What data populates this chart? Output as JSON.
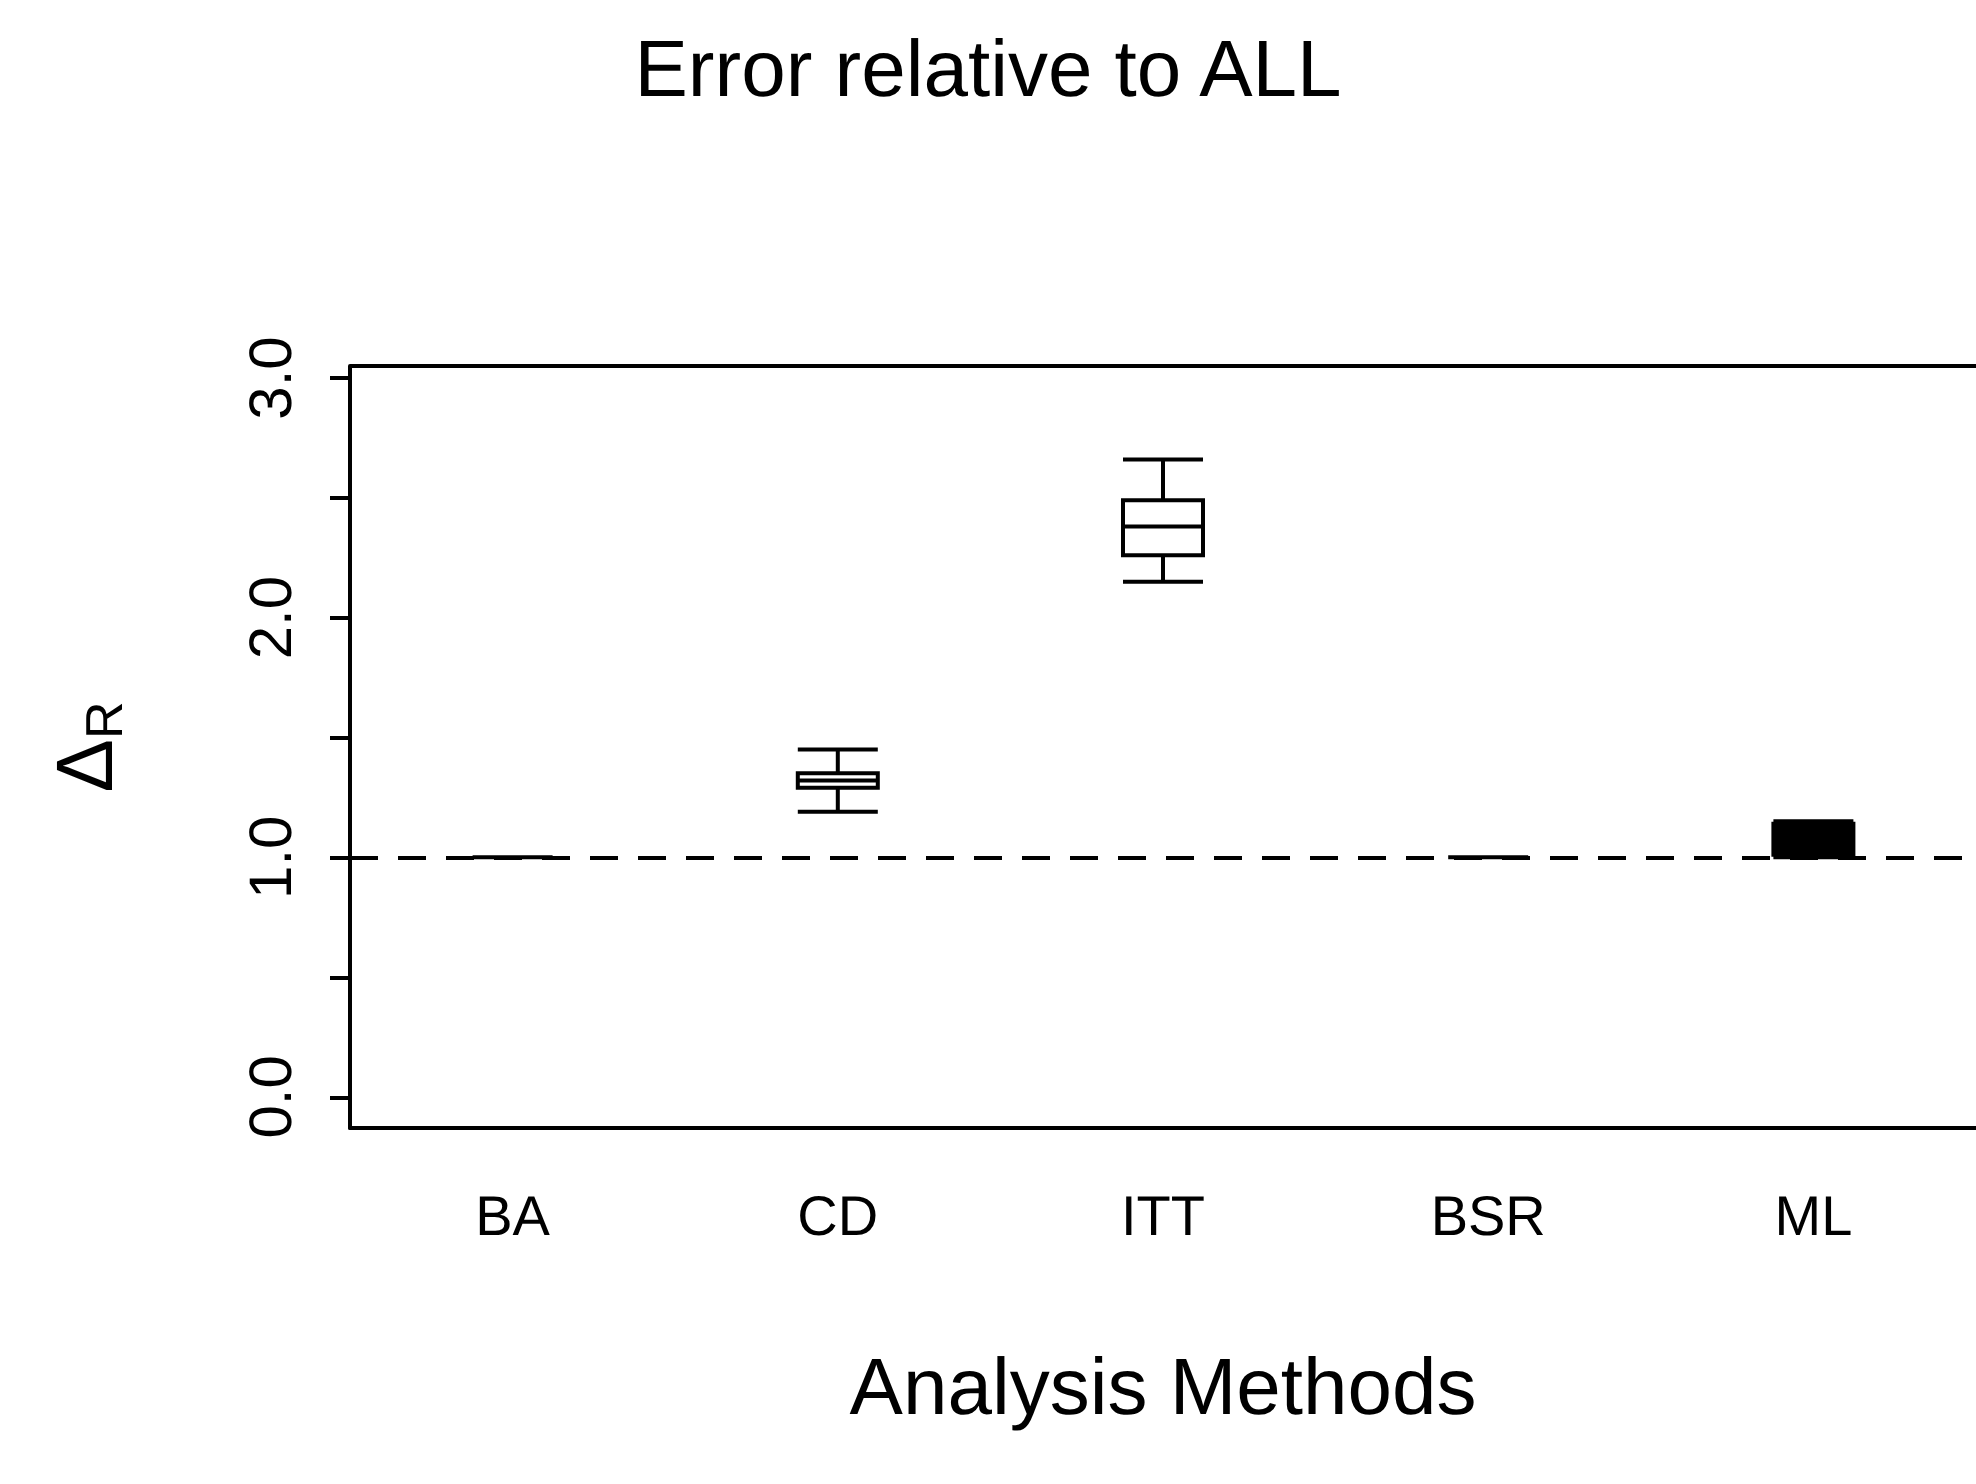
{
  "chart_data": {
    "type": "box",
    "title": "Error relative to ALL",
    "xlabel": "Analysis Methods",
    "ylabel": "Δ$_{R}$",
    "categories": [
      "BA",
      "CD",
      "ITT",
      "BSR",
      "ML"
    ],
    "boxes": [
      {
        "low": 1.0,
        "q1": 1.0,
        "median": 1.0,
        "q3": 1.0,
        "high": 1.0
      },
      {
        "low": 1.19,
        "q1": 1.29,
        "median": 1.32,
        "q3": 1.35,
        "high": 1.45
      },
      {
        "low": 2.15,
        "q1": 2.26,
        "median": 2.38,
        "q3": 2.49,
        "high": 2.66
      },
      {
        "low": 1.0,
        "q1": 1.0,
        "median": 1.0,
        "q3": 1.0,
        "high": 1.0
      },
      {
        "low": 1.0,
        "q1": 1.01,
        "median": 1.07,
        "q3": 1.14,
        "high": 1.15
      }
    ],
    "color": "#000000",
    "colors": [
      null,
      "#ffffff",
      "#ffffff",
      null,
      "#000000"
    ],
    "ylim": [
      -0.13,
      3.05
    ],
    "yticks": [
      {
        "value": 0,
        "label": "0.0"
      },
      {
        "value": 0.5,
        "label": null
      },
      {
        "value": 1,
        "label": "1.0"
      },
      {
        "value": 1.5,
        "label": null
      },
      {
        "value": 2,
        "label": "2.0"
      },
      {
        "value": 2.5,
        "label": null
      },
      {
        "value": 3,
        "label": "3.0"
      }
    ],
    "ref_lines": [
      {
        "axis": "y",
        "value": 1.0,
        "label": null,
        "line_style": "dashed",
        "color": "#000000"
      }
    ],
    "grid": false
  }
}
